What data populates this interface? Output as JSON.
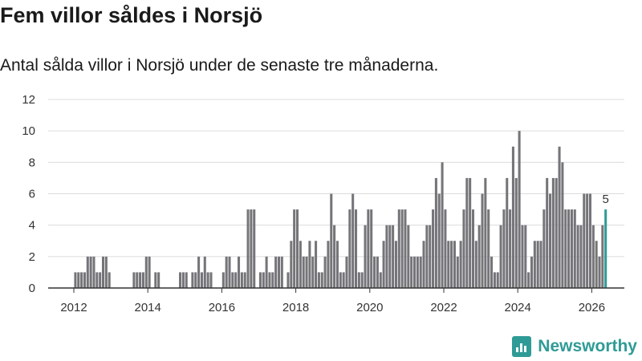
{
  "header": {
    "title": "Fem villor såldes i Norsjö",
    "subtitle": "Antal sålda villor i Norsjö under de senaste tre månaderna."
  },
  "brand": {
    "name": "Newsworthy"
  },
  "colors": {
    "bar": "#757478",
    "highlight": "#2f9b96",
    "grid": "#dcdcdc",
    "axis": "#333333"
  },
  "chart_data": {
    "type": "bar",
    "title": "Fem villor såldes i Norsjö",
    "subtitle": "Antal sålda villor i Norsjö under de senaste tre månaderna.",
    "xlabel": "",
    "ylabel": "",
    "ylim": [
      0,
      12
    ],
    "yticks": [
      0,
      2,
      4,
      6,
      8,
      10,
      12
    ],
    "xticks": [
      "2012",
      "2014",
      "2016",
      "2018",
      "2020",
      "2022",
      "2024",
      "2026"
    ],
    "start": "2011-03",
    "frequency": "monthly (rolling three-month sum)",
    "values": [
      0,
      0,
      0,
      0,
      0,
      0,
      0,
      0,
      0,
      0,
      1,
      1,
      1,
      1,
      2,
      2,
      2,
      1,
      1,
      2,
      2,
      1,
      0,
      0,
      0,
      0,
      0,
      0,
      0,
      1,
      1,
      1,
      1,
      2,
      2,
      0,
      1,
      1,
      0,
      0,
      0,
      0,
      0,
      0,
      1,
      1,
      1,
      0,
      1,
      1,
      2,
      1,
      2,
      1,
      1,
      0,
      0,
      0,
      1,
      2,
      2,
      1,
      1,
      2,
      1,
      1,
      5,
      5,
      5,
      0,
      1,
      1,
      2,
      1,
      1,
      2,
      2,
      2,
      0,
      1,
      3,
      5,
      5,
      3,
      2,
      2,
      3,
      2,
      3,
      1,
      1,
      2,
      3,
      6,
      4,
      3,
      1,
      1,
      2,
      5,
      6,
      5,
      1,
      1,
      4,
      5,
      5,
      2,
      2,
      1,
      3,
      4,
      4,
      4,
      3,
      5,
      5,
      5,
      4,
      2,
      2,
      2,
      2,
      3,
      4,
      4,
      5,
      7,
      6,
      8,
      5,
      3,
      3,
      3,
      2,
      3,
      5,
      7,
      7,
      5,
      3,
      4,
      6,
      7,
      5,
      2,
      1,
      1,
      4,
      5,
      7,
      5,
      9,
      7,
      10,
      4,
      4,
      1,
      2,
      3,
      3,
      3,
      5,
      7,
      6,
      7,
      7,
      9,
      8,
      5,
      5,
      5,
      5,
      4,
      4,
      6,
      6,
      6,
      4,
      3,
      2,
      4,
      5
    ],
    "latest": {
      "value": 5,
      "label": "5"
    }
  }
}
